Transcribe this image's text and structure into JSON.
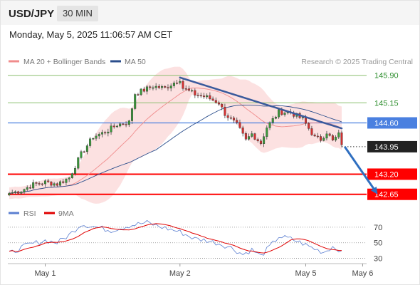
{
  "header": {
    "symbol": "USD/JPY",
    "timeframe": "30 MIN",
    "datetime": "Monday, May 5, 2025 11:06:57 AM CET"
  },
  "legend": {
    "ma20_label": "MA 20 + Bollinger Bands",
    "ma50_label": "MA 50",
    "credit": "Research © 2025 Trading Central",
    "ma20_color": "#f08c8c",
    "ma50_color": "#2b4e8c"
  },
  "rsi_legend": {
    "rsi_label": "RSI",
    "ma_label": "9MA",
    "rsi_color": "#5b7fd1",
    "ma_color": "#e00000"
  },
  "colors": {
    "bull": "#3a9a3a",
    "bear": "#d63030",
    "band": "#fbdcdc",
    "support": "#ff0000",
    "target_green": "#8cc070",
    "pivot_blue": "#4a80e0",
    "trendline": "#3a5a9c",
    "label_green": "#2f8f2f",
    "label_dark": "#222222"
  },
  "chart_data": [
    {
      "type": "candlestick",
      "x_ticks": [
        "May 1",
        "May 2",
        "May 5",
        "May 6"
      ],
      "ylim": [
        142.45,
        146.05
      ],
      "levels": [
        {
          "value": 145.9,
          "label": "145.90",
          "kind": "resistance"
        },
        {
          "value": 145.15,
          "label": "145.15",
          "kind": "resistance"
        },
        {
          "value": 144.6,
          "label": "144.60",
          "kind": "pivot"
        },
        {
          "value": 143.95,
          "label": "143.95",
          "kind": "last"
        },
        {
          "value": 143.2,
          "label": "143.20",
          "kind": "support"
        },
        {
          "value": 142.65,
          "label": "142.65",
          "kind": "support"
        }
      ],
      "trendline": [
        {
          "x": 57,
          "y": 145.84
        },
        {
          "x": 111,
          "y": 144.45
        }
      ],
      "forecast_arrow": [
        {
          "x": 112,
          "y": 143.95
        },
        {
          "x": 123,
          "y": 142.65
        }
      ],
      "close_anchors": [
        [
          0,
          142.68
        ],
        [
          4,
          142.75
        ],
        [
          8,
          142.92
        ],
        [
          12,
          142.98
        ],
        [
          16,
          142.93
        ],
        [
          20,
          143.1
        ],
        [
          24,
          143.75
        ],
        [
          28,
          144.22
        ],
        [
          32,
          144.35
        ],
        [
          36,
          144.55
        ],
        [
          40,
          144.62
        ],
        [
          42,
          145.4
        ],
        [
          45,
          145.5
        ],
        [
          48,
          145.6
        ],
        [
          52,
          145.55
        ],
        [
          56,
          145.75
        ],
        [
          57,
          145.8
        ],
        [
          58,
          145.55
        ],
        [
          62,
          145.38
        ],
        [
          66,
          145.3
        ],
        [
          70,
          145.15
        ],
        [
          72,
          144.85
        ],
        [
          76,
          144.55
        ],
        [
          79,
          144.12
        ],
        [
          81,
          144.3
        ],
        [
          84,
          144.05
        ],
        [
          86,
          144.48
        ],
        [
          90,
          144.9
        ],
        [
          94,
          144.88
        ],
        [
          98,
          144.7
        ],
        [
          100,
          144.45
        ],
        [
          102,
          144.2
        ],
        [
          104,
          144.15
        ],
        [
          106,
          144.35
        ],
        [
          108,
          144.1
        ],
        [
          110,
          144.28
        ],
        [
          111,
          144.0
        ]
      ]
    },
    {
      "type": "line",
      "name": "RSI",
      "ylim": [
        25,
        80
      ],
      "y_ticks": [
        70,
        50,
        30
      ],
      "rsi_anchors": [
        [
          0,
          36
        ],
        [
          6,
          47
        ],
        [
          12,
          53
        ],
        [
          16,
          50
        ],
        [
          20,
          60
        ],
        [
          24,
          74
        ],
        [
          28,
          71
        ],
        [
          34,
          66
        ],
        [
          40,
          72
        ],
        [
          46,
          76
        ],
        [
          50,
          71
        ],
        [
          55,
          66
        ],
        [
          57,
          64
        ],
        [
          62,
          55
        ],
        [
          66,
          53
        ],
        [
          70,
          49
        ],
        [
          74,
          44
        ],
        [
          78,
          35
        ],
        [
          81,
          41
        ],
        [
          84,
          33
        ],
        [
          87,
          45
        ],
        [
          90,
          58
        ],
        [
          94,
          55
        ],
        [
          98,
          49
        ],
        [
          102,
          42
        ],
        [
          105,
          38
        ],
        [
          108,
          45
        ],
        [
          111,
          40
        ]
      ]
    }
  ]
}
